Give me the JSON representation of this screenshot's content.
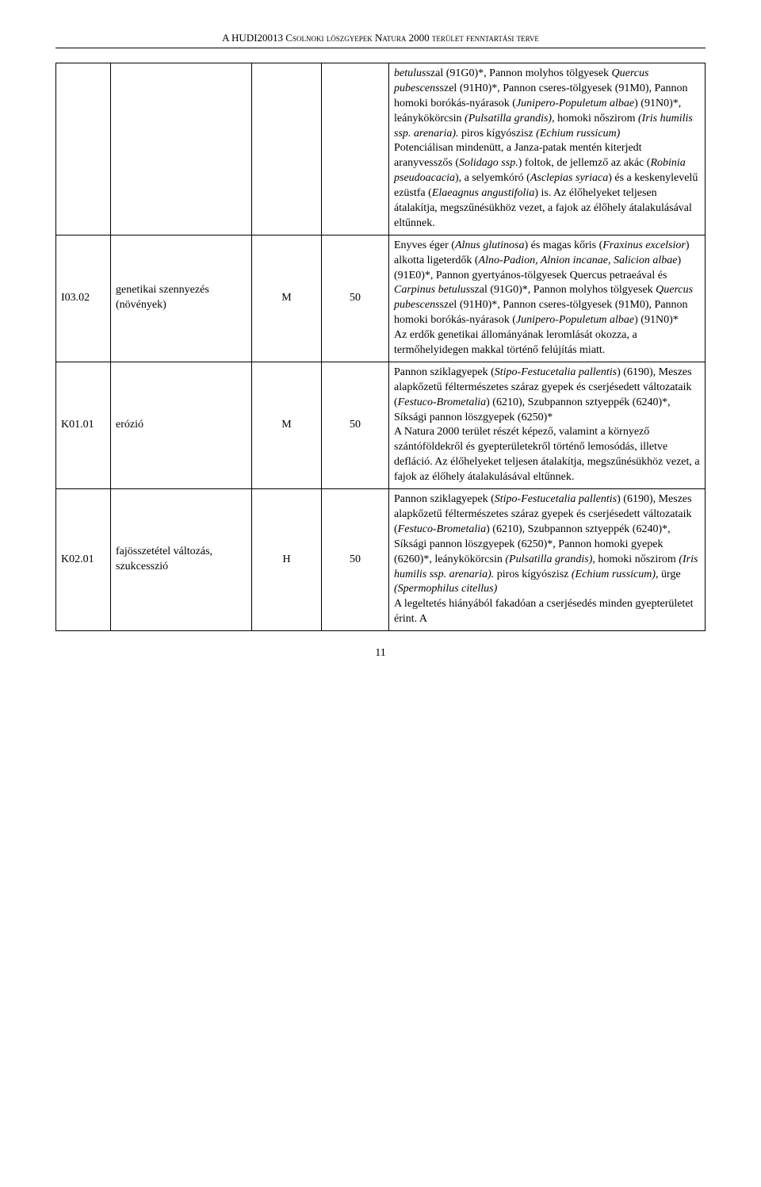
{
  "header": "A HUDI20013 Csolnoki löszgyepek Natura 2000 terület fenntartási terve",
  "page_number": "11",
  "rows": [
    {
      "code": "",
      "name": "",
      "c3": "",
      "c4": "",
      "desc_html": "<span class='italic'>betulus</span>szal (91G0)*, Pannon molyhos tölgyesek <span class='italic'>Quercus pubescens</span>szel (91H0)*, Pannon cseres-tölgyesek (91M0), Pannon homoki borókás-nyárasok (<span class='italic'>Junipero-Populetum albae</span>) (91N0)*, leánykökörcsin <span class='italic'>(Pulsatilla grandis),</span> homoki nőszirom <span class='italic'>(Iris humilis ssp. arenaria).</span> piros kígyószisz <span class='italic'>(Echium russicum)</span><br>Potenciálisan mindenütt, a Janza-patak mentén kiterjedt aranyvesszős (<span class='italic'>Solidago ssp.</span>) foltok, de jellemző az akác (<span class='italic'>Robinia pseudoacacia</span>), a selyemkóró (<span class='italic'>Asclepias syriaca</span>) és a keskenylevelű ezüstfa (<span class='italic'>Elaeagnus angustifolia</span>) is. Az élőhelyeket teljesen átalakítja, megszűnésükhöz vezet, a fajok az élőhely átalakulásával eltűnnek."
    },
    {
      "code": "I03.02",
      "name": "genetikai szennyezés (növények)",
      "c3": "M",
      "c4": "50",
      "desc_html": "Enyves éger (<span class='italic'>Alnus glutinosa</span>) és magas kőris (<span class='italic'>Fraxinus excelsior</span>) alkotta ligeterdők (<span class='italic'>Alno-Padion, Alnion incanae, Salicion albae</span>) (91E0)*, Pannon gyertyános-tölgyesek Quercus petraeával és <span class='italic'>Carpinus betulus</span>szal (91G0)*, Pannon molyhos tölgyesek <span class='italic'>Quercus pubescens</span>szel (91H0)*, Pannon cseres-tölgyesek (91M0), Pannon homoki borókás-nyárasok (<span class='italic'>Junipero-Populetum albae</span>) (91N0)*<br>Az erdők genetikai állományának leromlását okozza, a termőhelyidegen makkal történő felújítás miatt."
    },
    {
      "code": "K01.01",
      "name": "erózió",
      "c3": "M",
      "c4": "50",
      "desc_html": "Pannon sziklagyepek (<span class='italic'>Stipo-Festucetalia pallentis</span>) (6190), Meszes alapkőzetű féltermészetes száraz gyepek és cserjésedett változataik (<span class='italic'>Festuco-Brometalia</span>) (6210), Szubpannon sztyeppék (6240)*, Síksági pannon löszgyepek (6250)*<br>A Natura 2000 terület részét képező, valamint a környező szántóföldekről és gyepterületekről történő lemosódás, illetve defláció. Az élőhelyeket teljesen átalakítja, megszűnésükhöz vezet, a fajok az élőhely átalakulásával eltűnnek."
    },
    {
      "code": "K02.01",
      "name": "fajösszetétel változás, szukcesszió",
      "c3": "H",
      "c4": "50",
      "desc_html": "Pannon sziklagyepek (<span class='italic'>Stipo-Festucetalia pallentis</span>) (6190), Meszes alapkőzetű féltermészetes száraz gyepek és cserjésedett változataik (<span class='italic'>Festuco-Brometalia</span>) (6210), Szubpannon sztyeppék (6240)*, Síksági pannon löszgyepek (6250)*, Pannon homoki gyepek (6260)*, leánykökörcsin <span class='italic'>(Pulsatilla grandis),</span> homoki nőszirom <span class='italic'>(Iris humilis ssp. arenaria).</span> piros kígyószisz <span class='italic'>(Echium russicum),</span> ürge <span class='italic'>(Spermophilus citellus)</span><br>A legeltetés hiányából fakadóan a cserjésedés minden gyepterületet érint. A"
    }
  ]
}
